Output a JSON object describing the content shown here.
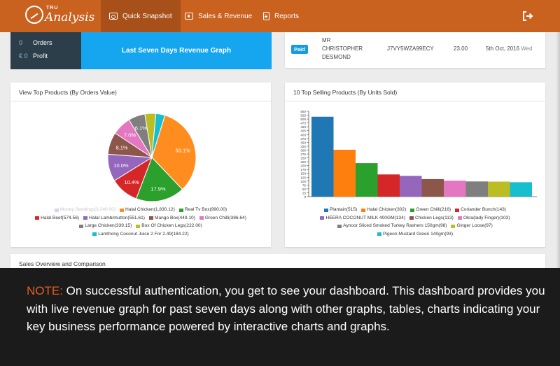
{
  "app": {
    "logo_small": "TRU",
    "logo_name": "Analysis"
  },
  "nav": [
    {
      "label": "Quick Snapshot",
      "icon": "camera-icon"
    },
    {
      "label": "Sales & Revenue",
      "icon": "money-icon"
    },
    {
      "label": "Reports",
      "icon": "report-icon"
    }
  ],
  "stats": {
    "orders_value": "0",
    "orders_label": "Orders",
    "profit_value": "€ 0",
    "profit_label": "Profit"
  },
  "banner": "Last Seven Days Revenue Graph",
  "order": {
    "status": "Paid",
    "customer": [
      "MR",
      "CHRISTOPHER",
      "DESMOND"
    ],
    "code": "J7VY5WZA99ECY",
    "amount": "23.00",
    "date": "5th Oct, 2016",
    "day": "Wed"
  },
  "pie_card": {
    "title": "View Top Products (By Orders Value)"
  },
  "bar_card": {
    "title": "10 Top Selling Products (By Units Sold)"
  },
  "overview": {
    "title": "Sales Overview and Comparison"
  },
  "note": {
    "label": "NOTE:",
    "text": " On successful authentication, you get to see your dashboard. This dashboard provides you with live revenue graph for past seven days along with other graphs, tables, charts indicating your key business performance powered by interactive charts and graphs."
  },
  "chart_data": [
    {
      "type": "pie",
      "title": "View Top Products (By Orders Value)",
      "slices": [
        {
          "label": "Money Sendings(3,240.00)",
          "value": 3240,
          "color": "#cfd8ea",
          "hidden": true
        },
        {
          "label": "Halal Chicken(1,830.12)",
          "value": 1830.12,
          "pct": "33.1%",
          "color": "#ff8c1e"
        },
        {
          "label": "Real Tv Box(990.00)",
          "value": 990,
          "pct": "17.9%",
          "color": "#2ca02c"
        },
        {
          "label": "Halal Beef(574.56)",
          "value": 574.56,
          "pct": "10.4%",
          "color": "#d62728"
        },
        {
          "label": "Halal Lamb/mutton(551.61)",
          "value": 551.61,
          "pct": "10.0%",
          "color": "#9467bd"
        },
        {
          "label": "Mango Box(449.10)",
          "value": 449.1,
          "pct": "8.1%",
          "color": "#8c564b"
        },
        {
          "label": "Green Chilli(386.64)",
          "value": 386.64,
          "pct": "7.0%",
          "color": "#e377c2"
        },
        {
          "label": "Large Chicken(339.15)",
          "value": 339.15,
          "pct": "6.1%",
          "color": "#7f7f7f"
        },
        {
          "label": "Box Of Chicken Legs(222.00)",
          "value": 222,
          "color": "#bcbd22"
        },
        {
          "label": "Lamthong Coconut Juice 2 For 2.49(184.22)",
          "value": 184.22,
          "color": "#17becf"
        }
      ]
    },
    {
      "type": "bar",
      "title": "10 Top Selling Products (By Units Sold)",
      "ylim": [
        0,
        550
      ],
      "yticks": [
        "0",
        "25",
        "50",
        "75",
        "100",
        "125",
        "150",
        "175",
        "200",
        "225",
        "250",
        "275",
        "300",
        "325",
        "350",
        "375",
        "400",
        "425",
        "450",
        "475",
        "500",
        "525",
        "550"
      ],
      "bars": [
        {
          "label": "Plantain(515)",
          "value": 515,
          "color": "#1f77b4"
        },
        {
          "label": "Halal Chicken(302)",
          "value": 302,
          "color": "#ff7f0e"
        },
        {
          "label": "Green Chilli(216)",
          "value": 216,
          "color": "#2ca02c"
        },
        {
          "label": "Coriander Bunch(143)",
          "value": 143,
          "color": "#d62728"
        },
        {
          "label": "HEERA COCONUT MILK 400GM(134)",
          "value": 134,
          "color": "#9467bd"
        },
        {
          "label": "Chicken Legs(113)",
          "value": 113,
          "color": "#8c564b"
        },
        {
          "label": "Okra(lady Finger)(103)",
          "value": 103,
          "color": "#e377c2"
        },
        {
          "label": "Aynoor Sliced Smoked Turkey Rashers 150gm(98)",
          "value": 98,
          "color": "#7f7f7f"
        },
        {
          "label": "Ginger Loose(97)",
          "value": 97,
          "color": "#bcbd22"
        },
        {
          "label": "Pigeon Mustard Green 140gm(93)",
          "value": 93,
          "color": "#17becf"
        }
      ]
    }
  ]
}
